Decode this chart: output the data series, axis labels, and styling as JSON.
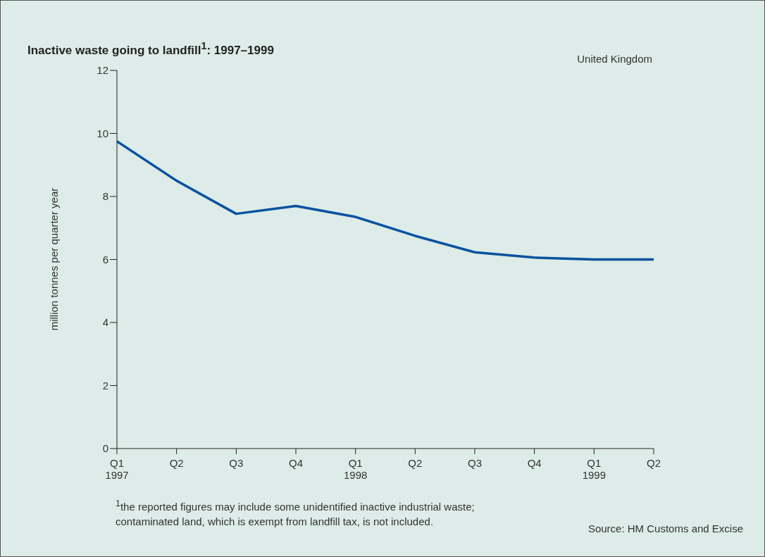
{
  "chart_data": {
    "type": "line",
    "title": "Inactive waste going to landfill$^{1}$: 1997–1999",
    "ylabel": "million tonnes per quarter year",
    "categories": [
      "Q1\n1997",
      "Q2",
      "Q3",
      "Q4",
      "Q1\n1998",
      "Q2",
      "Q3",
      "Q4",
      "Q1\n1999",
      "Q2"
    ],
    "series": [
      {
        "color": "#0a52a0",
        "values": [
          9.75,
          8.5,
          7.45,
          7.7,
          7.35,
          6.75,
          6.23,
          6.06,
          6.0,
          6.0
        ]
      }
    ],
    "ylim": [
      0,
      12
    ],
    "yticks": [
      0,
      2,
      4,
      6,
      8,
      10,
      12
    ],
    "marker": "none",
    "legend": false,
    "grid": false,
    "annotations": [
      "United Kingdom",
      "$^{1}$the reported figures may include some unidentified inactive industrial waste;\ncontaminated land, which is exempt from landfill tax, is not included.",
      "Source: HM Customs and Excise"
    ]
  }
}
